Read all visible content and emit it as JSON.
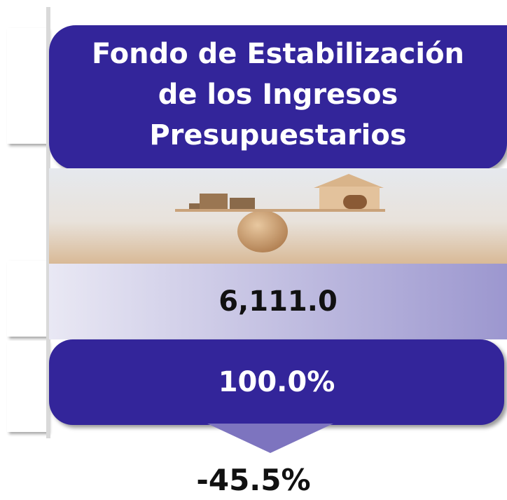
{
  "header": {
    "title_lines": [
      "Fondo de Estabilización",
      "de los Ingresos",
      "Presupuestarios"
    ]
  },
  "amount": "6,111.0",
  "share": "100.0%",
  "change": "-45.5%"
}
